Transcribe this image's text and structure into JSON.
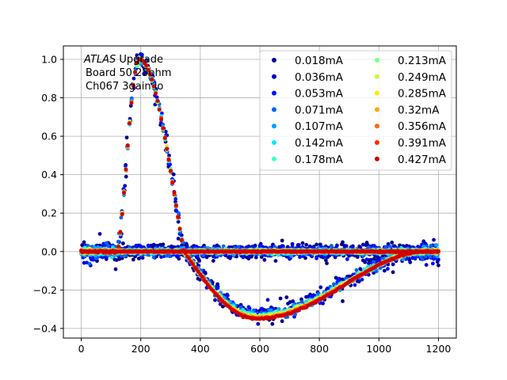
{
  "chart_data": {
    "type": "scatter",
    "title": "",
    "xlabel": "",
    "ylabel": "",
    "xlim": [
      -60,
      1260
    ],
    "ylim": [
      -0.45,
      1.07
    ],
    "xticks": [
      0,
      200,
      400,
      600,
      800,
      1000,
      1200
    ],
    "yticks": [
      -0.4,
      -0.2,
      0.0,
      0.2,
      0.4,
      0.6,
      0.8,
      1.0
    ],
    "xtick_labels": [
      "0",
      "200",
      "400",
      "600",
      "800",
      "1000",
      "1200"
    ],
    "ytick_labels": [
      "−0.4",
      "−0.2",
      "0.0",
      "0.2",
      "0.4",
      "0.6",
      "0.8",
      "1.0"
    ],
    "grid": true,
    "legend_position": "top-right",
    "legend_columns": 2,
    "annotation": {
      "italic": "ATLAS",
      "rest": " Upgrade",
      "line2": "Board 50 25ohm",
      "line3": "Ch067 3gain lo"
    },
    "x_range": [
      0,
      1200
    ],
    "x_step": 3.125,
    "pulse_shape": {
      "description_values": "normalized pulse vs time index",
      "peak": {
        "x": 195,
        "y": 1.0
      },
      "zero_crossing": {
        "x": 345,
        "y": 0.0
      },
      "undershoot_min": {
        "x": 590,
        "y": -0.35
      },
      "recovery": {
        "x": 1150,
        "y": 0.0
      }
    },
    "series": [
      {
        "name": "0.018mA",
        "color": "#00008f",
        "noise": 0.035
      },
      {
        "name": "0.036mA",
        "color": "#0000b8",
        "noise": 0.028
      },
      {
        "name": "0.053mA",
        "color": "#0010ff",
        "noise": 0.022
      },
      {
        "name": "0.071mA",
        "color": "#0060ff",
        "noise": 0.017
      },
      {
        "name": "0.107mA",
        "color": "#00a0ff",
        "noise": 0.012
      },
      {
        "name": "0.142mA",
        "color": "#10e8f0",
        "noise": 0.009
      },
      {
        "name": "0.178mA",
        "color": "#40ffc0",
        "noise": 0.007
      },
      {
        "name": "0.213mA",
        "color": "#80ff80",
        "noise": 0.006
      },
      {
        "name": "0.249mA",
        "color": "#c0ff40",
        "noise": 0.005
      },
      {
        "name": "0.285mA",
        "color": "#ffe800",
        "noise": 0.004
      },
      {
        "name": "0.32mA",
        "color": "#ffa800",
        "noise": 0.004
      },
      {
        "name": "0.356mA",
        "color": "#ff6800",
        "noise": 0.003
      },
      {
        "name": "0.391mA",
        "color": "#ff2800",
        "noise": 0.003
      },
      {
        "name": "0.427mA",
        "color": "#d00000",
        "noise": 0.003
      }
    ]
  }
}
